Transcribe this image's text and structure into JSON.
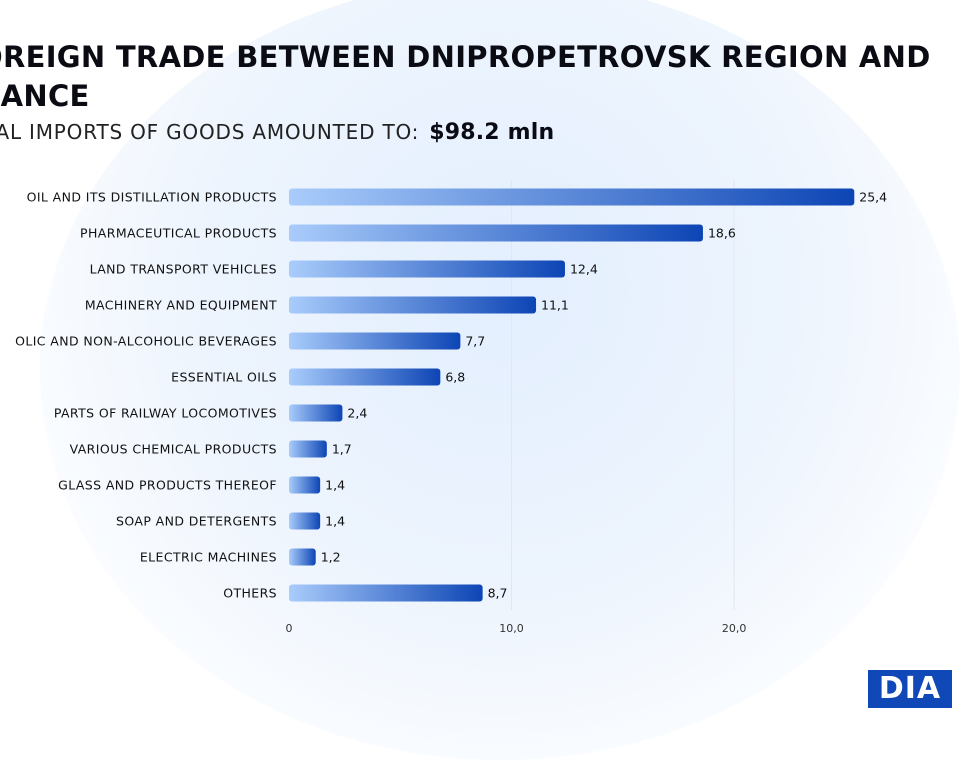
{
  "title": "OREIGN TRADE BETWEEN DNIPROPETROVSK REGION AND RANCE",
  "title_line1": "OREIGN TRADE BETWEEN DNIPROPETROVSK REGION AND",
  "title_line2": "RANCE",
  "subtitle": "TAL IMPORTS OF GOODS AMOUNTED TO:",
  "total": "$98.2 mln",
  "logo_text": "DIA",
  "colors": {
    "bar_start": "#a9ccfb",
    "bar_end": "#0d45b5",
    "logo": "#1148b8"
  },
  "chart_data": {
    "type": "bar",
    "orientation": "horizontal",
    "categories": [
      "OIL AND ITS DISTILLATION PRODUCTS",
      "PHARMACEUTICAL PRODUCTS",
      "LAND TRANSPORT VEHICLES",
      "MACHINERY AND EQUIPMENT",
      "OLIC AND NON-ALCOHOLIC BEVERAGES",
      "ESSENTIAL OILS",
      "PARTS OF RAILWAY LOCOMOTIVES",
      "VARIOUS CHEMICAL PRODUCTS",
      "GLASS AND PRODUCTS THEREOF",
      "SOAP AND DETERGENTS",
      "ELECTRIC MACHINES",
      "OTHERS"
    ],
    "values": [
      25.4,
      18.6,
      12.4,
      11.1,
      7.7,
      6.8,
      2.4,
      1.7,
      1.4,
      1.4,
      1.2,
      8.7
    ],
    "value_labels": [
      "25,4",
      "18,6",
      "12,4",
      "11,1",
      "7,7",
      "6,8",
      "2,4",
      "1,7",
      "1,4",
      "1,4",
      "1,2",
      "8,7"
    ],
    "x_ticks": [
      0,
      10,
      20
    ],
    "x_tick_labels": [
      "0",
      "10,0",
      "20,0"
    ],
    "xlim": [
      0,
      26.6
    ],
    "grid": true
  }
}
